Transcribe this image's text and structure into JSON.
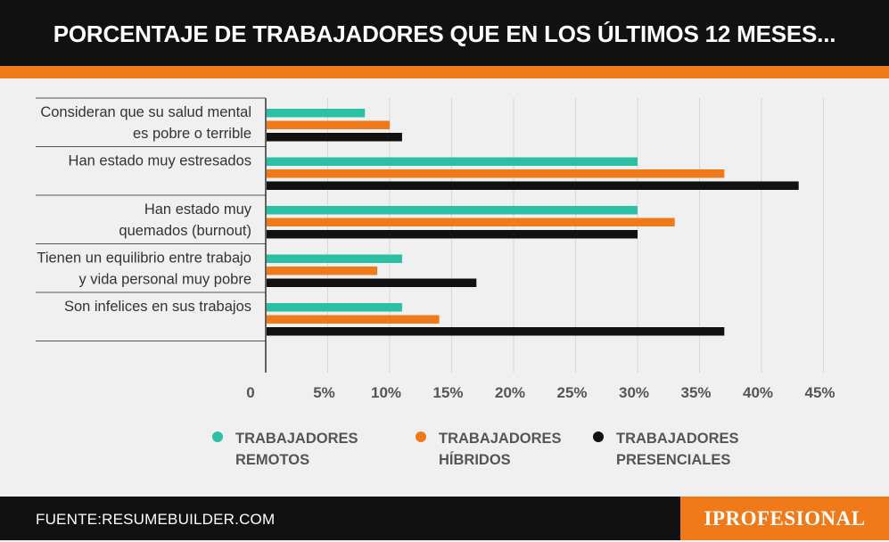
{
  "title": "PORCENTAJE DE TRABAJADORES QUE EN LOS ÚLTIMOS 12 MESES...",
  "source": "FUENTE:RESUMEBUILDER.COM",
  "logo": "IPROFESIONAL",
  "colors": {
    "remotos": "#2bbfa4",
    "hibridos": "#f07a1a",
    "presenciales": "#111111",
    "accent": "#f07a1a"
  },
  "chart_data": {
    "type": "bar",
    "orientation": "horizontal",
    "categories": [
      [
        "Consideran que su salud mental",
        "es pobre o terrible"
      ],
      [
        "Han estado muy estresados"
      ],
      [
        "Han estado muy",
        "quemados (burnout)"
      ],
      [
        "Tienen un equilibrio entre trabajo",
        "y vida personal muy pobre"
      ],
      [
        "Son infelices en sus trabajos"
      ]
    ],
    "series": [
      {
        "name": "TRABAJADORES REMOTOS",
        "color": "#2bbfa4",
        "values": [
          8,
          30,
          30,
          11,
          11
        ]
      },
      {
        "name": "TRABAJADORES HÍBRIDOS",
        "color": "#f07a1a",
        "values": [
          10,
          37,
          33,
          9,
          14
        ]
      },
      {
        "name": "TRABAJADORES PRESENCIALES",
        "color": "#111111",
        "values": [
          11,
          43,
          30,
          17,
          37
        ]
      }
    ],
    "xticks": [
      "0",
      "5%",
      "10%",
      "15%",
      "20%",
      "25%",
      "30%",
      "35%",
      "40%",
      "45%"
    ],
    "xlim": [
      0,
      45
    ],
    "grid": true,
    "legend_position": "bottom"
  },
  "legend": [
    {
      "line1": "TRABAJADORES",
      "line2": "REMOTOS",
      "color": "#2bbfa4"
    },
    {
      "line1": "TRABAJADORES",
      "line2": "HÍBRIDOS",
      "color": "#f07a1a"
    },
    {
      "line1": "TRABAJADORES",
      "line2": "PRESENCIALES",
      "color": "#111111"
    }
  ]
}
